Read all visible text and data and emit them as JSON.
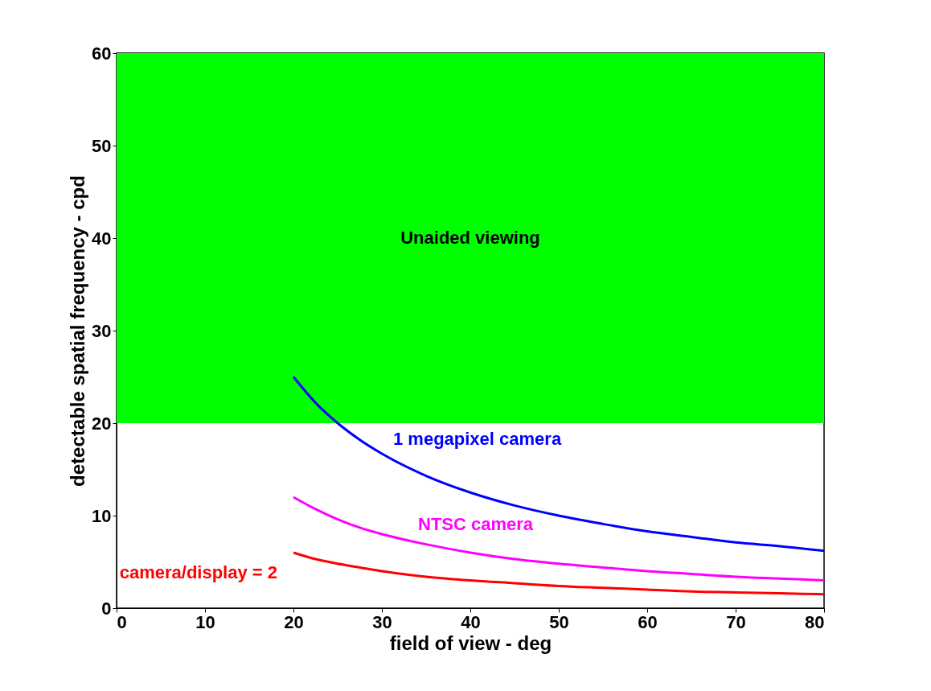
{
  "chart_data": {
    "type": "line",
    "xlabel": "field of view - deg",
    "ylabel": "detectable spatial frequency - cpd",
    "x": [
      20,
      22.5,
      25,
      27.5,
      30,
      35,
      40,
      45,
      50,
      55,
      60,
      65,
      70,
      75,
      80
    ],
    "series": [
      {
        "name": "1 megapixel camera",
        "color": "#0000ff",
        "values": [
          25,
          22.2,
          20,
          18.2,
          16.7,
          14.3,
          12.5,
          11.1,
          10,
          9.1,
          8.3,
          7.7,
          7.1,
          6.7,
          6.2
        ]
      },
      {
        "name": "NTSC camera",
        "color": "#ff00ff",
        "values": [
          12,
          10.7,
          9.6,
          8.7,
          8,
          6.9,
          6,
          5.3,
          4.8,
          4.4,
          4,
          3.7,
          3.4,
          3.2,
          3
        ]
      },
      {
        "name": "camera/display = 2",
        "color": "#ff0000",
        "values": [
          6,
          5.3,
          4.8,
          4.4,
          4,
          3.4,
          3,
          2.7,
          2.4,
          2.2,
          2,
          1.8,
          1.7,
          1.6,
          1.5
        ]
      }
    ],
    "bands": [
      {
        "axis": "y",
        "from": 20,
        "to": 60,
        "label": "Unaided viewing",
        "color": "#00ff00"
      }
    ],
    "xlim": [
      0,
      80
    ],
    "xticks": [
      0,
      10,
      20,
      30,
      40,
      50,
      60,
      70,
      80
    ],
    "ylim": [
      0,
      60
    ],
    "yticks": [
      0,
      10,
      20,
      30,
      40,
      50,
      60
    ],
    "grid": false,
    "marker": "none",
    "line_style": "solid"
  }
}
